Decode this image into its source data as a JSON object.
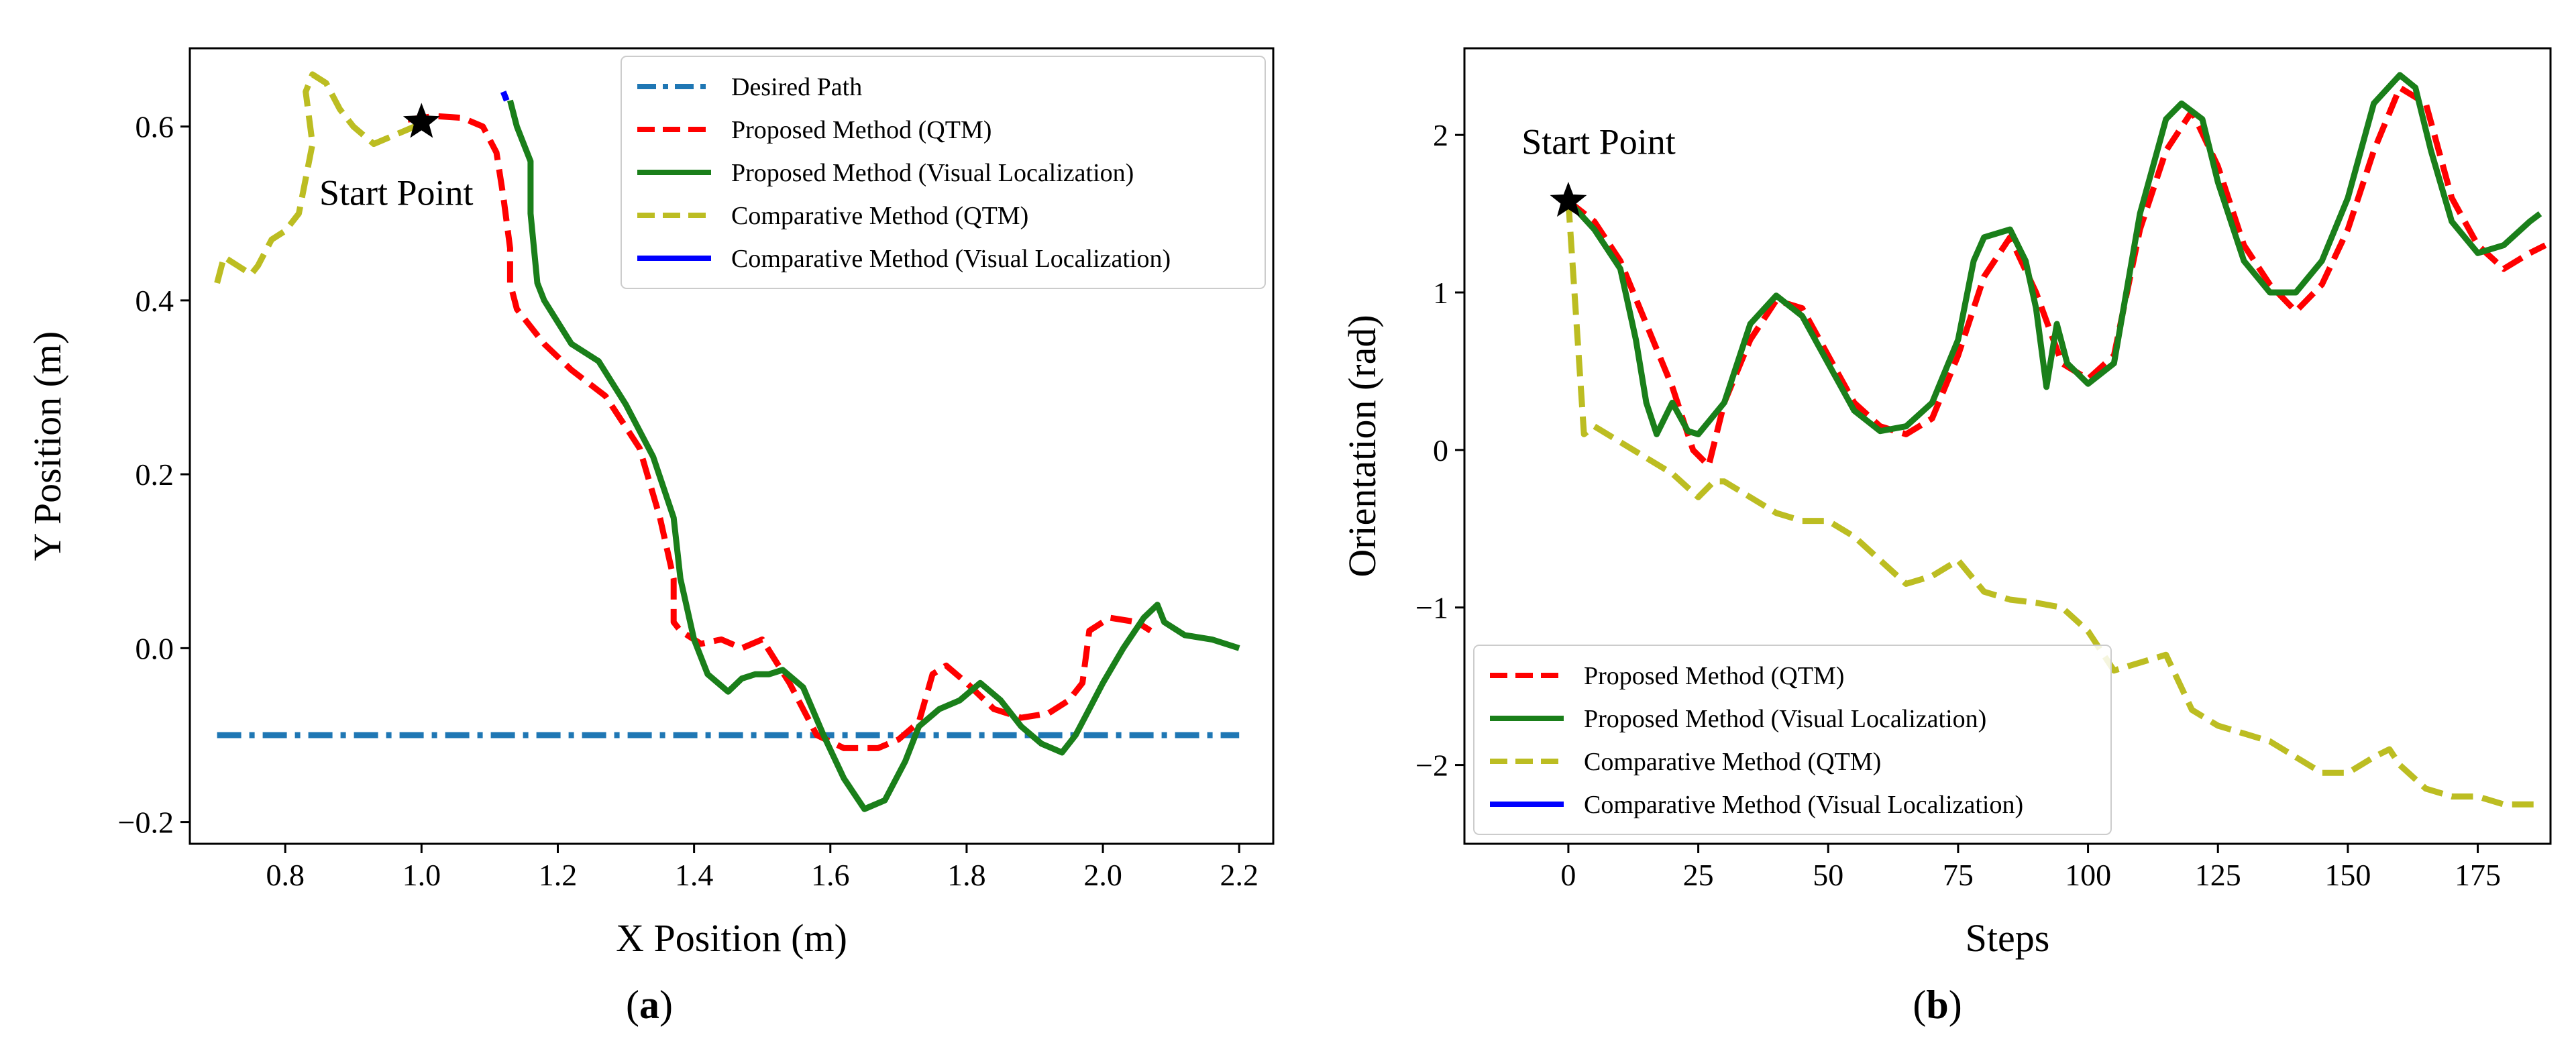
{
  "chart_data": [
    {
      "type": "line",
      "panel": "(a)",
      "panel_letter": "a",
      "xlabel": "X Position (m)",
      "ylabel": "Y Position (m)",
      "xlim": [
        0.66,
        2.25
      ],
      "ylim": [
        -0.225,
        0.69
      ],
      "xticks": [
        0.8,
        1.0,
        1.2,
        1.4,
        1.6,
        1.8,
        2.0,
        2.2
      ],
      "xtick_labels": [
        "0.8",
        "1.0",
        "1.2",
        "1.4",
        "1.6",
        "1.8",
        "2.0",
        "2.2"
      ],
      "yticks": [
        -0.2,
        0.0,
        0.2,
        0.4,
        0.6
      ],
      "ytick_labels": [
        "−0.2",
        "0.0",
        "0.2",
        "0.4",
        "0.6"
      ],
      "legend_position": "top-right",
      "annotation": {
        "text": "Start Point",
        "marker_x": 1.0,
        "marker_y": 0.605,
        "text_x": 0.85,
        "text_y": 0.51
      },
      "series": [
        {
          "name": "Desired Path",
          "color": "#1f77b4",
          "style": "dashdot",
          "x": [
            0.7,
            2.2
          ],
          "y": [
            -0.1,
            -0.1
          ]
        },
        {
          "name": "Proposed Method (QTM)",
          "color": "#ff0000",
          "style": "dashed",
          "x": [
            0.98,
            1.02,
            1.06,
            1.09,
            1.11,
            1.12,
            1.13,
            1.13,
            1.14,
            1.18,
            1.22,
            1.27,
            1.32,
            1.35,
            1.37,
            1.37,
            1.38,
            1.41,
            1.44,
            1.47,
            1.5,
            1.54,
            1.58,
            1.62,
            1.67,
            1.7,
            1.73,
            1.75,
            1.77,
            1.8,
            1.84,
            1.88,
            1.92,
            1.95,
            1.97,
            1.98,
            2.01,
            2.05,
            2.07
          ],
          "y": [
            0.608,
            0.612,
            0.61,
            0.6,
            0.57,
            0.52,
            0.46,
            0.42,
            0.39,
            0.35,
            0.32,
            0.29,
            0.23,
            0.15,
            0.08,
            0.03,
            0.02,
            0.005,
            0.01,
            0.0,
            0.01,
            -0.04,
            -0.1,
            -0.115,
            -0.115,
            -0.105,
            -0.085,
            -0.03,
            -0.02,
            -0.04,
            -0.07,
            -0.08,
            -0.075,
            -0.06,
            -0.04,
            0.02,
            0.035,
            0.03,
            0.02
          ]
        },
        {
          "name": "Proposed Method (Visual Localization)",
          "color": "#1a7f1a",
          "style": "solid",
          "x": [
            1.13,
            1.14,
            1.15,
            1.16,
            1.16,
            1.17,
            1.18,
            1.22,
            1.26,
            1.3,
            1.34,
            1.37,
            1.38,
            1.4,
            1.42,
            1.45,
            1.47,
            1.49,
            1.51,
            1.53,
            1.56,
            1.59,
            1.62,
            1.65,
            1.68,
            1.71,
            1.73,
            1.76,
            1.79,
            1.82,
            1.85,
            1.88,
            1.91,
            1.94,
            1.96,
            1.98,
            2.0,
            2.03,
            2.06,
            2.08,
            2.09,
            2.12,
            2.16,
            2.2
          ],
          "y": [
            0.63,
            0.6,
            0.58,
            0.56,
            0.5,
            0.42,
            0.4,
            0.35,
            0.33,
            0.28,
            0.22,
            0.15,
            0.08,
            0.01,
            -0.03,
            -0.05,
            -0.035,
            -0.03,
            -0.03,
            -0.025,
            -0.045,
            -0.1,
            -0.15,
            -0.185,
            -0.175,
            -0.13,
            -0.09,
            -0.07,
            -0.06,
            -0.04,
            -0.06,
            -0.09,
            -0.11,
            -0.12,
            -0.1,
            -0.07,
            -0.04,
            0.0,
            0.035,
            0.05,
            0.03,
            0.015,
            0.01,
            0.0
          ]
        },
        {
          "name": "Comparative Method (QTM)",
          "color": "#bcbd22",
          "style": "dashed",
          "x": [
            0.7,
            0.71,
            0.73,
            0.75,
            0.76,
            0.78,
            0.8,
            0.82,
            0.83,
            0.84,
            0.83,
            0.84,
            0.86,
            0.88,
            0.9,
            0.93,
            0.96,
            0.99,
            1.0
          ],
          "y": [
            0.42,
            0.45,
            0.44,
            0.43,
            0.44,
            0.47,
            0.48,
            0.5,
            0.54,
            0.58,
            0.64,
            0.66,
            0.65,
            0.62,
            0.6,
            0.58,
            0.59,
            0.6,
            0.605
          ]
        },
        {
          "name": "Comparative Method (Visual Localization)",
          "color": "#0000ff",
          "style": "solid",
          "x": [
            1.12,
            1.125
          ],
          "y": [
            0.64,
            0.63
          ]
        }
      ]
    },
    {
      "type": "line",
      "panel": "(b)",
      "panel_letter": "b",
      "xlabel": "Steps",
      "ylabel": "Orientation (rad)",
      "xlim": [
        -20,
        189
      ],
      "ylim": [
        -2.5,
        2.55
      ],
      "xticks": [
        0,
        25,
        50,
        75,
        100,
        125,
        150,
        175
      ],
      "xtick_labels": [
        "0",
        "25",
        "50",
        "75",
        "100",
        "125",
        "150",
        "175"
      ],
      "yticks": [
        -2,
        -1,
        0,
        1,
        2
      ],
      "ytick_labels": [
        "−2",
        "−1",
        "0",
        "1",
        "2"
      ],
      "legend_position": "lower-left",
      "annotation": {
        "text": "Start Point",
        "marker_x": 0,
        "marker_y": 1.58,
        "text_x": -9,
        "text_y": 1.88
      },
      "series": [
        {
          "name": "Proposed Method (QTM)",
          "color": "#ff0000",
          "style": "dashed",
          "x": [
            0,
            5,
            10,
            15,
            20,
            24,
            27,
            30,
            35,
            40,
            45,
            50,
            55,
            60,
            65,
            70,
            75,
            80,
            85,
            90,
            95,
            100,
            105,
            110,
            115,
            120,
            125,
            130,
            135,
            140,
            145,
            150,
            155,
            160,
            165,
            170,
            175,
            180,
            185,
            188
          ],
          "y": [
            1.58,
            1.45,
            1.2,
            0.8,
            0.4,
            0.0,
            -0.1,
            0.3,
            0.7,
            0.95,
            0.9,
            0.6,
            0.3,
            0.15,
            0.1,
            0.2,
            0.6,
            1.1,
            1.35,
            1.0,
            0.55,
            0.45,
            0.6,
            1.4,
            1.9,
            2.15,
            1.8,
            1.3,
            1.05,
            0.88,
            1.05,
            1.4,
            1.9,
            2.3,
            2.2,
            1.6,
            1.3,
            1.15,
            1.25,
            1.3
          ]
        },
        {
          "name": "Proposed Method (Visual Localization)",
          "color": "#1a7f1a",
          "style": "solid",
          "x": [
            0,
            5,
            10,
            13,
            15,
            17,
            20,
            23,
            25,
            30,
            35,
            40,
            45,
            50,
            55,
            60,
            65,
            70,
            75,
            78,
            80,
            85,
            88,
            90,
            92,
            94,
            96,
            100,
            105,
            110,
            115,
            118,
            122,
            125,
            130,
            135,
            140,
            145,
            150,
            155,
            160,
            163,
            166,
            170,
            175,
            180,
            185,
            187
          ],
          "y": [
            1.58,
            1.4,
            1.15,
            0.7,
            0.3,
            0.1,
            0.3,
            0.12,
            0.1,
            0.3,
            0.8,
            0.98,
            0.85,
            0.55,
            0.25,
            0.12,
            0.15,
            0.3,
            0.7,
            1.2,
            1.35,
            1.4,
            1.2,
            0.9,
            0.4,
            0.8,
            0.55,
            0.42,
            0.55,
            1.5,
            2.1,
            2.2,
            2.1,
            1.7,
            1.2,
            1.0,
            1.0,
            1.2,
            1.6,
            2.2,
            2.38,
            2.3,
            1.9,
            1.45,
            1.25,
            1.3,
            1.45,
            1.5
          ]
        },
        {
          "name": "Comparative Method (QTM)",
          "color": "#bcbd22",
          "style": "dashed",
          "x": [
            0,
            3,
            5,
            10,
            15,
            20,
            25,
            28,
            30,
            35,
            40,
            45,
            50,
            55,
            60,
            65,
            70,
            75,
            80,
            85,
            90,
            95,
            100,
            105,
            110,
            115,
            120,
            125,
            130,
            135,
            140,
            145,
            150,
            155,
            158,
            160,
            165,
            170,
            175,
            180,
            185,
            187
          ],
          "y": [
            1.58,
            0.1,
            0.15,
            0.05,
            -0.05,
            -0.15,
            -0.3,
            -0.2,
            -0.2,
            -0.3,
            -0.4,
            -0.45,
            -0.45,
            -0.55,
            -0.7,
            -0.85,
            -0.8,
            -0.7,
            -0.9,
            -0.95,
            -0.97,
            -1.0,
            -1.15,
            -1.4,
            -1.35,
            -1.3,
            -1.65,
            -1.75,
            -1.8,
            -1.85,
            -1.95,
            -2.05,
            -2.05,
            -1.95,
            -1.9,
            -2.0,
            -2.15,
            -2.2,
            -2.2,
            -2.25,
            -2.25,
            -2.25
          ]
        },
        {
          "name": "Comparative Method (Visual Localization)",
          "color": "#0000ff",
          "style": "solid",
          "x": [],
          "y": []
        }
      ]
    }
  ]
}
